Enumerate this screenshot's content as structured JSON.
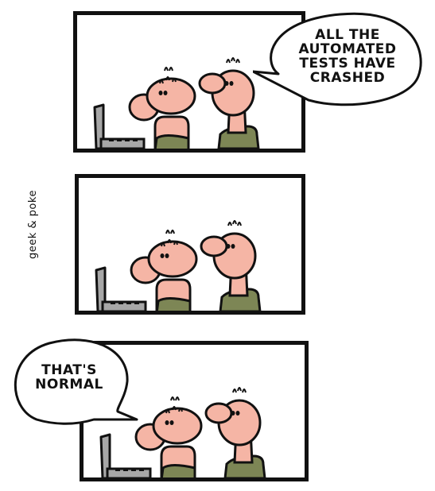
{
  "comic": {
    "signature": "geek & poke",
    "panels": [
      {
        "speech": "ALL THE AUTOMATED TESTS HAVE CRASHED",
        "speaker": "standing-man"
      },
      {
        "speech": "",
        "speaker": ""
      },
      {
        "speech": "THAT'S NORMAL",
        "speaker": "sitting-man"
      }
    ]
  },
  "colors": {
    "outline": "#111111",
    "skin": "#f5b5a5",
    "shirt": "#7d8655",
    "laptop": "#a7a7a7"
  }
}
